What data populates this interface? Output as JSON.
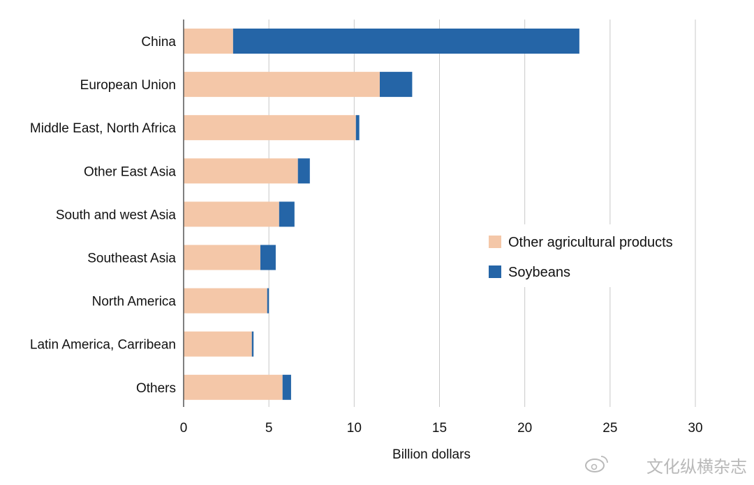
{
  "chart_data": {
    "type": "bar",
    "orientation": "horizontal",
    "stacked": true,
    "categories": [
      "China",
      "European Union",
      "Middle East, North Africa",
      "Other East Asia",
      "South and west Asia",
      "Southeast Asia",
      "North America",
      "Latin America, Carribean",
      "Others"
    ],
    "series": [
      {
        "name": "Other agricultural products",
        "color": "#f4c7a8",
        "values": [
          2.9,
          11.5,
          10.1,
          6.7,
          5.6,
          4.5,
          4.9,
          4.0,
          5.8
        ]
      },
      {
        "name": "Soybeans",
        "color": "#2565a7",
        "values": [
          20.3,
          1.9,
          0.2,
          0.7,
          0.9,
          0.9,
          0.1,
          0.1,
          0.5
        ]
      }
    ],
    "xlabel": "Billion dollars",
    "ylabel": "",
    "xlim": [
      0,
      30
    ],
    "xticks": [
      0,
      5,
      10,
      15,
      20,
      25,
      30
    ],
    "grid": "vertical",
    "legend_position": "right-middle"
  },
  "watermark": "文化纵横杂志"
}
